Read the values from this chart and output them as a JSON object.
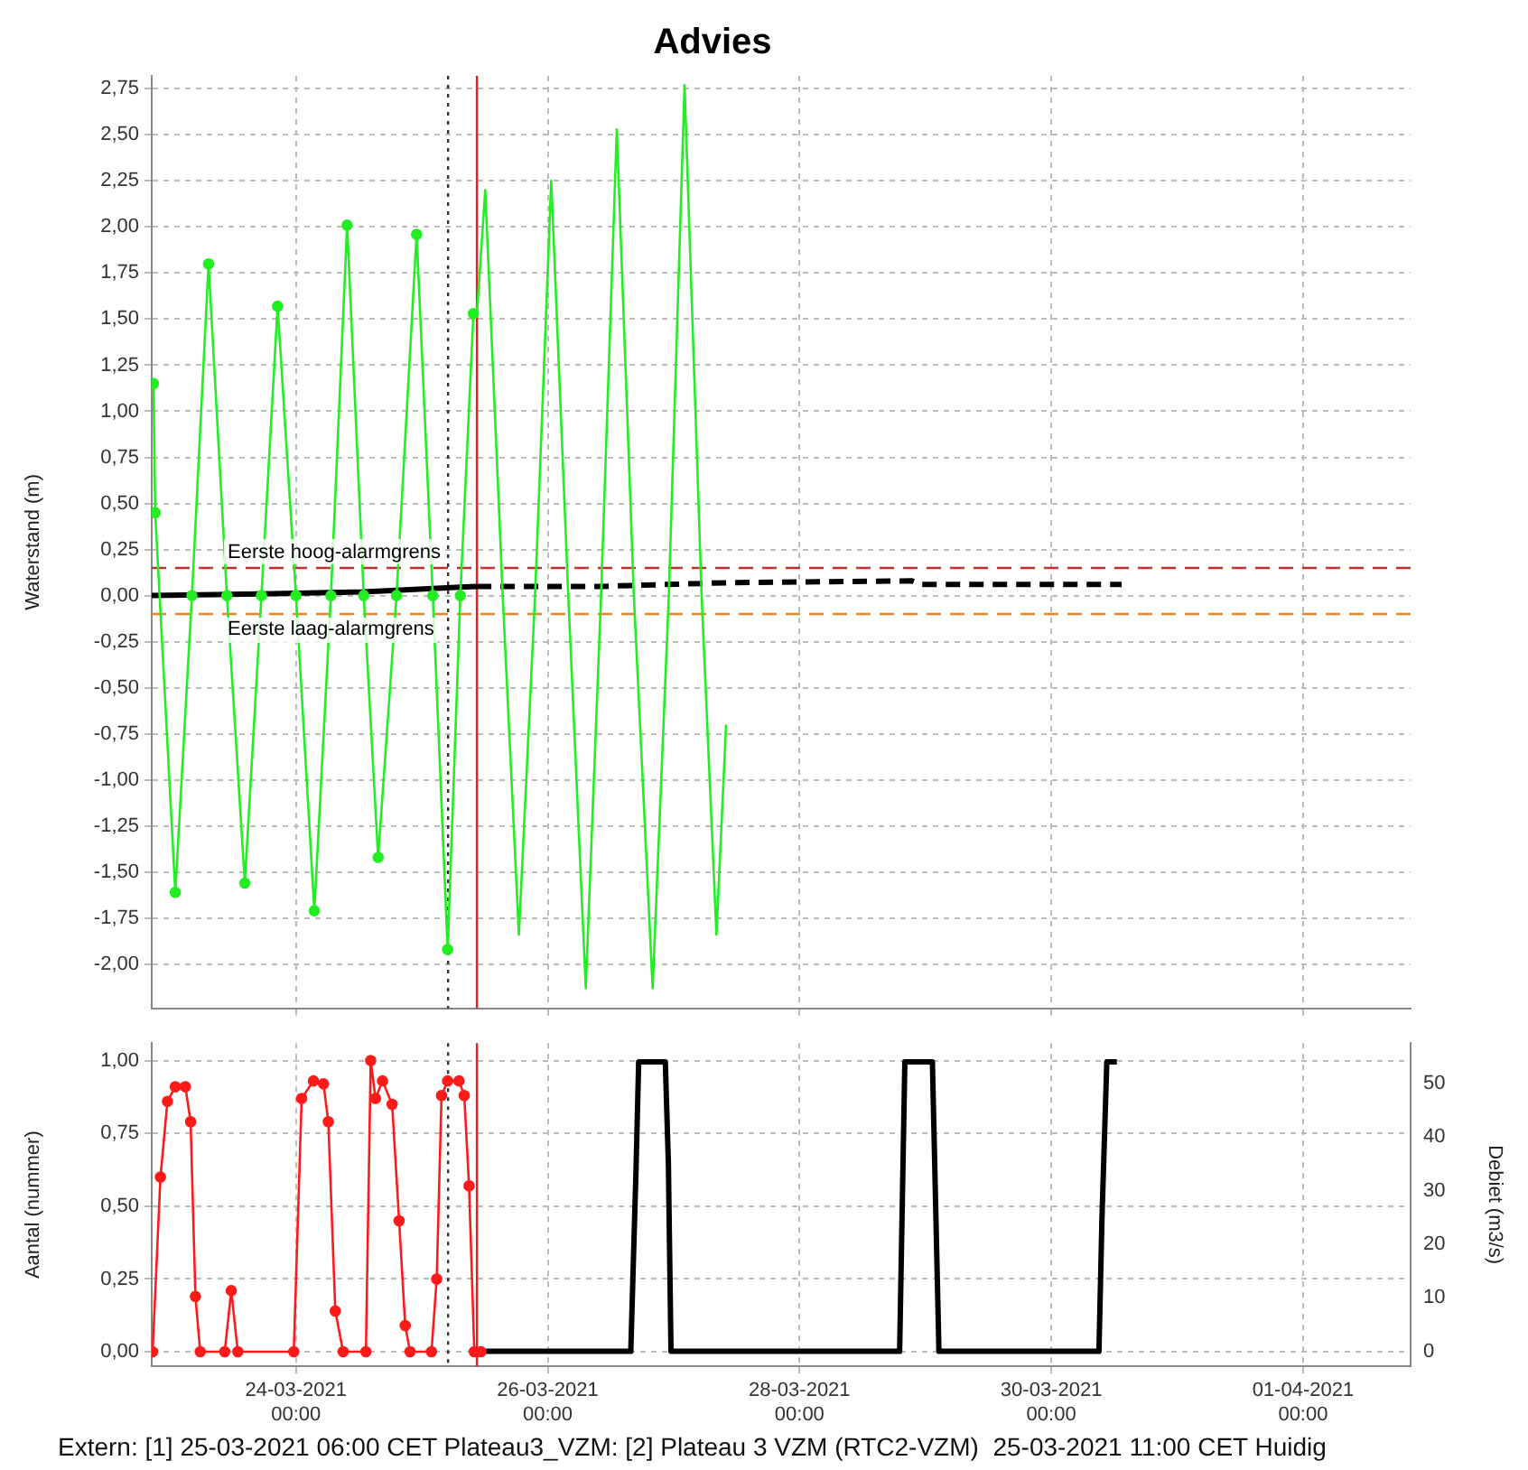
{
  "chart_data": [
    {
      "type": "line",
      "title": "Advies",
      "ylabel": "Waterstand (m)",
      "grid": true,
      "legend": false,
      "tick_labels": "y",
      "xlim": [
        "2021-03-22T20:30",
        "2021-04-01T20:30"
      ],
      "xticks": [
        {
          "value": "2021-03-24T00:00",
          "label": null
        },
        {
          "value": "2021-03-26T00:00",
          "label": null
        },
        {
          "value": "2021-03-28T00:00",
          "label": null
        },
        {
          "value": "2021-03-30T00:00",
          "label": null
        },
        {
          "value": "2021-04-01T00:00",
          "label": null
        }
      ],
      "ylim": [
        -2.24,
        2.82
      ],
      "yticks": [
        {
          "value": -2,
          "label": "-2,00"
        },
        {
          "value": -1.75,
          "label": "-1,75"
        },
        {
          "value": -1.5,
          "label": "-1,50"
        },
        {
          "value": -1.25,
          "label": "-1,25"
        },
        {
          "value": -1,
          "label": "-1,00"
        },
        {
          "value": -0.75,
          "label": "-0,75"
        },
        {
          "value": -0.5,
          "label": "-0,50"
        },
        {
          "value": -0.25,
          "label": "-0,25"
        },
        {
          "value": 0,
          "label": "0,00"
        },
        {
          "value": 0.25,
          "label": "0,25"
        },
        {
          "value": 0.5,
          "label": "0,50"
        },
        {
          "value": 0.75,
          "label": "0,75"
        },
        {
          "value": 1,
          "label": "1,00"
        },
        {
          "value": 1.25,
          "label": "1,25"
        },
        {
          "value": 1.5,
          "label": "1,50"
        },
        {
          "value": 1.75,
          "label": "1,75"
        },
        {
          "value": 2,
          "label": "2,00"
        },
        {
          "value": 2.25,
          "label": "2,25"
        },
        {
          "value": 2.5,
          "label": "2,50"
        },
        {
          "value": 2.75,
          "label": "2,75"
        }
      ],
      "series": [
        {
          "color": "#22ee22",
          "marker": "circle",
          "line_style": "solid",
          "x": [
            "2021-03-22T20:50",
            "2021-03-22T21:10",
            "2021-03-23T01:00",
            "2021-03-23T04:10",
            "2021-03-23T07:20",
            "2021-03-23T10:50",
            "2021-03-23T14:15",
            "2021-03-23T17:25",
            "2021-03-23T20:30",
            "2021-03-24T00:00",
            "2021-03-24T03:30",
            "2021-03-24T06:40",
            "2021-03-24T09:45",
            "2021-03-24T12:55",
            "2021-03-24T15:40",
            "2021-03-24T19:10",
            "2021-03-24T23:00",
            "2021-03-25T02:05",
            "2021-03-25T04:55",
            "2021-03-25T07:20",
            "2021-03-25T09:50"
          ],
          "values": [
            1.15,
            0.45,
            -1.61,
            0.0,
            1.8,
            0.0,
            -1.56,
            0.0,
            1.57,
            0.0,
            -1.71,
            0.0,
            2.01,
            0.0,
            -1.42,
            0.0,
            1.96,
            0.0,
            -1.92,
            0.0,
            1.53
          ]
        },
        {
          "color": "#22ee22",
          "marker": "none",
          "line_style": "solid",
          "x": [
            "2021-03-25T10:30",
            "2021-03-25T12:05",
            "2021-03-25T15:25",
            "2021-03-25T18:30",
            "2021-03-25T21:35",
            "2021-03-26T00:40",
            "2021-03-26T03:55",
            "2021-03-26T07:15",
            "2021-03-26T10:10",
            "2021-03-26T13:10",
            "2021-03-26T16:25",
            "2021-03-26T20:00",
            "2021-03-26T23:05",
            "2021-03-27T02:05",
            "2021-03-27T05:20",
            "2021-03-27T08:10",
            "2021-03-27T10:00"
          ],
          "values": [
            1.53,
            2.2,
            0.0,
            -1.84,
            0.0,
            2.25,
            0.0,
            -2.13,
            0.0,
            2.53,
            0.0,
            -2.13,
            0.0,
            2.77,
            0.0,
            -1.84,
            -0.7
          ]
        },
        {
          "color": "#000000",
          "marker": "none",
          "line_style": "solid",
          "x": [
            "2021-03-22T20:30",
            "2021-03-23T19:30",
            "2021-03-24T12:55",
            "2021-03-25T10:30"
          ],
          "values": [
            0.0,
            0.01,
            0.02,
            0.05
          ]
        },
        {
          "color": "#000000",
          "marker": "none",
          "line_style": "dashed",
          "x": [
            "2021-03-25T10:30",
            "2021-03-26T10:10",
            "2021-03-27T10:30",
            "2021-03-28T21:25",
            "2021-03-28T23:05",
            "2021-03-30T13:25"
          ],
          "values": [
            0.05,
            0.05,
            0.07,
            0.08,
            0.06,
            0.06
          ]
        }
      ],
      "ref_lines": [
        {
          "axis": "y",
          "value": 0.15,
          "label": "Eerste hoog-alarmgrens",
          "color": "#c03030",
          "line_style": "dashed"
        },
        {
          "axis": "y",
          "value": -0.1,
          "label": "Eerste laag-alarmgrens",
          "color": "#f08020",
          "line_style": "dashed"
        },
        {
          "axis": "x",
          "value": "2021-03-25T05:00",
          "color": "#333333",
          "line_style": "dotted"
        },
        {
          "axis": "x",
          "value": "2021-03-25T10:30",
          "color": "#e02020",
          "line_style": "solid"
        }
      ]
    },
    {
      "type": "line",
      "ylabel": "Aantal (nummer)",
      "y2label": "Debiet (m3/s)",
      "grid": true,
      "legend": false,
      "xlim": [
        "2021-03-22T20:30",
        "2021-04-01T20:30"
      ],
      "xticks": [
        {
          "value": "2021-03-24T00:00",
          "label": "24-03-2021 00:00"
        },
        {
          "value": "2021-03-26T00:00",
          "label": "26-03-2021 00:00"
        },
        {
          "value": "2021-03-28T00:00",
          "label": "28-03-2021 00:00"
        },
        {
          "value": "2021-03-30T00:00",
          "label": "30-03-2021 00:00"
        },
        {
          "value": "2021-04-01T00:00",
          "label": "01-04-2021 00:00"
        }
      ],
      "ylim": [
        -0.05,
        1.06
      ],
      "yticks": [
        {
          "value": 0,
          "label": "0,00"
        },
        {
          "value": 0.25,
          "label": "0,25"
        },
        {
          "value": 0.5,
          "label": "0,50"
        },
        {
          "value": 0.75,
          "label": "0,75"
        },
        {
          "value": 1,
          "label": "1,00"
        }
      ],
      "y2lim": [
        -2.8,
        57.5
      ],
      "y2ticks": [
        0,
        10,
        20,
        30,
        40,
        50
      ],
      "series": [
        {
          "color": "#ff1a1a",
          "marker": "circle",
          "line_style": "solid",
          "x": [
            "2021-03-22T20:40",
            "2021-03-22T22:10",
            "2021-03-22T23:30",
            "2021-03-23T01:00",
            "2021-03-23T02:55",
            "2021-03-23T03:55",
            "2021-03-23T04:50",
            "2021-03-23T05:45",
            "2021-03-23T10:25",
            "2021-03-23T11:40",
            "2021-03-23T12:55",
            "2021-03-23T23:35",
            "2021-03-24T01:05",
            "2021-03-24T03:20",
            "2021-03-24T05:15",
            "2021-03-24T06:10",
            "2021-03-24T07:30",
            "2021-03-24T09:00",
            "2021-03-24T13:20",
            "2021-03-24T14:15",
            "2021-03-24T15:10",
            "2021-03-24T16:30",
            "2021-03-24T18:20",
            "2021-03-24T19:40",
            "2021-03-24T20:50",
            "2021-03-24T21:45",
            "2021-03-25T01:50",
            "2021-03-25T02:50",
            "2021-03-25T03:45",
            "2021-03-25T04:55",
            "2021-03-25T07:05",
            "2021-03-25T08:05",
            "2021-03-25T09:00",
            "2021-03-25T10:00",
            "2021-03-25T11:15"
          ],
          "values": [
            0.0,
            0.6,
            0.86,
            0.91,
            0.91,
            0.79,
            0.19,
            0.0,
            0.0,
            0.21,
            0.0,
            0.0,
            0.87,
            0.93,
            0.92,
            0.79,
            0.14,
            0.0,
            0.0,
            1.0,
            0.87,
            0.93,
            0.85,
            0.45,
            0.09,
            0.0,
            0.0,
            0.25,
            0.88,
            0.93,
            0.93,
            0.88,
            0.57,
            0.0,
            0.0
          ]
        },
        {
          "color": "#000000",
          "marker": "none",
          "line_style": "solid",
          "axis": "y2",
          "x": [
            "2021-03-25T11:15",
            "2021-03-26T15:50",
            "2021-03-26T16:50",
            "2021-03-26T17:20",
            "2021-03-26T22:25",
            "2021-03-26T23:00",
            "2021-03-26T23:30",
            "2021-03-28T19:05",
            "2021-03-28T20:05",
            "2021-03-29T01:20",
            "2021-03-29T02:35",
            "2021-03-30T09:05",
            "2021-03-30T09:40",
            "2021-03-30T10:35",
            "2021-03-30T12:30"
          ],
          "values": [
            0,
            0,
            34,
            54,
            54,
            35,
            0,
            0,
            54,
            54,
            0,
            0,
            25,
            54,
            54
          ]
        }
      ],
      "ref_lines": [
        {
          "axis": "x",
          "value": "2021-03-25T05:00",
          "color": "#333333",
          "line_style": "dotted"
        },
        {
          "axis": "x",
          "value": "2021-03-25T10:30",
          "color": "#e02020",
          "line_style": "solid"
        }
      ],
      "annotations": [
        "Extern: [1] 25-03-2021 06:00 CET Plateau3_VZM: [2] Plateau 3 VZM (RTC2-VZM)  25-03-2021 11:00 CET Huidig"
      ]
    }
  ]
}
